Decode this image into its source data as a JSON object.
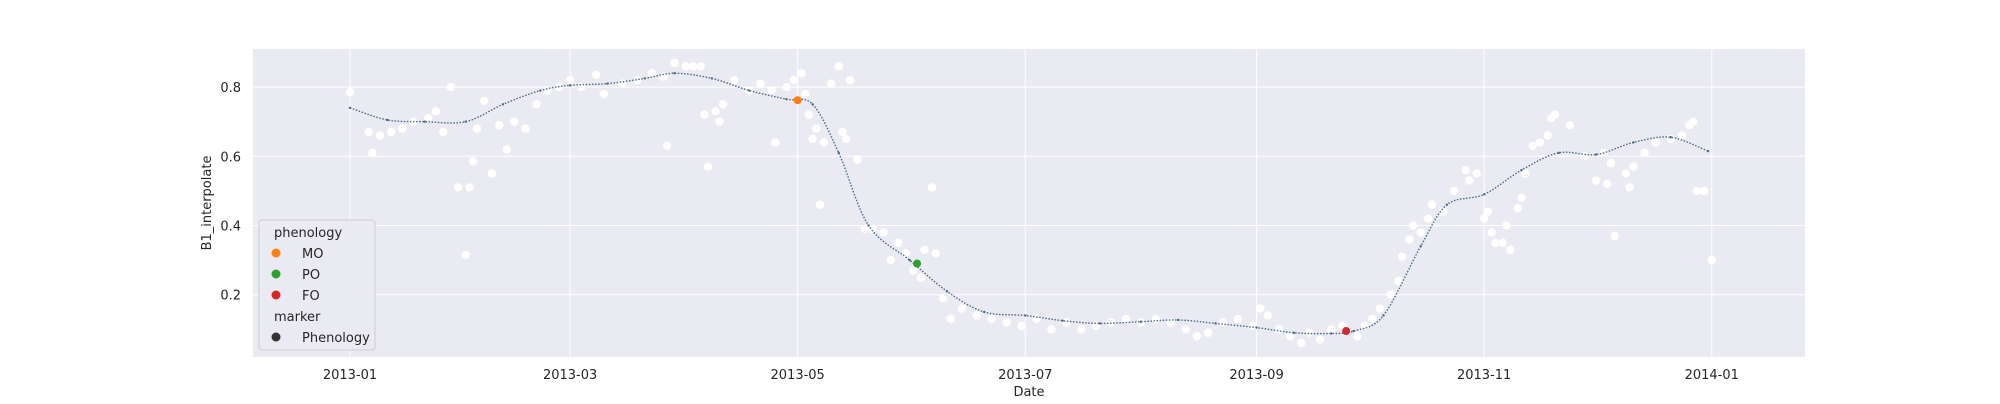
{
  "chart_data": {
    "type": "scatter",
    "xlabel": "Date",
    "ylabel": "B1_interpolate",
    "xlim": [
      "2012-12-06",
      "2014-01-26"
    ],
    "ylim": [
      0.02,
      0.91
    ],
    "x_ticks": [
      "2013-01-01",
      "2013-03-01",
      "2013-05-01",
      "2013-07-01",
      "2013-09-01",
      "2013-11-01",
      "2014-01-01"
    ],
    "x_tick_labels": [
      "2013-01",
      "2013-03",
      "2013-05",
      "2013-07",
      "2013-09",
      "2013-11",
      "2014-01"
    ],
    "y_ticks": [
      0.2,
      0.4,
      0.6,
      0.8
    ],
    "y_tick_labels": [
      "0.2",
      "0.4",
      "0.6",
      "0.8"
    ],
    "grid": true,
    "legend_position": "lower-left",
    "colors": {
      "background": "#eaeaf2",
      "grid": "#ffffff",
      "raw_points": "#ffffff",
      "smooth_line": "#4a6a85",
      "MO": "#ff7f0e",
      "PO": "#2ca02c",
      "FO": "#d62728",
      "marker": "#333333"
    },
    "legend": {
      "title1": "phenology",
      "entries": [
        {
          "label": "MO",
          "color": "#ff7f0e"
        },
        {
          "label": "PO",
          "color": "#2ca02c"
        },
        {
          "label": "FO",
          "color": "#d62728"
        }
      ],
      "title2": "marker",
      "marker_entry": {
        "label": "Phenology",
        "color": "#333333"
      }
    },
    "smoothed_series": {
      "x": [
        "2013-01-01",
        "2013-01-11",
        "2013-01-21",
        "2013-02-01",
        "2013-02-11",
        "2013-02-21",
        "2013-03-01",
        "2013-03-11",
        "2013-03-21",
        "2013-03-29",
        "2013-04-08",
        "2013-04-18",
        "2013-04-28",
        "2013-05-05",
        "2013-05-12",
        "2013-05-20",
        "2013-05-31",
        "2013-06-10",
        "2013-06-20",
        "2013-07-01",
        "2013-07-11",
        "2013-07-21",
        "2013-08-01",
        "2013-08-11",
        "2013-08-21",
        "2013-09-01",
        "2013-09-11",
        "2013-09-21",
        "2013-09-27",
        "2013-10-05",
        "2013-10-15",
        "2013-10-22",
        "2013-11-01",
        "2013-11-11",
        "2013-11-21",
        "2013-12-01",
        "2013-12-11",
        "2013-12-21",
        "2013-12-31"
      ],
      "y": [
        0.74,
        0.705,
        0.7,
        0.7,
        0.75,
        0.79,
        0.805,
        0.81,
        0.825,
        0.84,
        0.825,
        0.79,
        0.765,
        0.75,
        0.61,
        0.4,
        0.3,
        0.21,
        0.15,
        0.14,
        0.125,
        0.117,
        0.122,
        0.127,
        0.117,
        0.105,
        0.09,
        0.088,
        0.095,
        0.14,
        0.34,
        0.46,
        0.49,
        0.56,
        0.61,
        0.605,
        0.64,
        0.655,
        0.615
      ]
    },
    "phenology_points": [
      {
        "label": "MO",
        "x": "2013-05-01",
        "y": 0.762
      },
      {
        "label": "PO",
        "x": "2013-06-02",
        "y": 0.29
      },
      {
        "label": "FO",
        "x": "2013-09-25",
        "y": 0.095
      }
    ],
    "raw_points": [
      [
        "2013-01-01",
        0.785
      ],
      [
        "2013-01-06",
        0.67
      ],
      [
        "2013-01-07",
        0.61
      ],
      [
        "2013-01-09",
        0.66
      ],
      [
        "2013-01-12",
        0.67
      ],
      [
        "2013-01-15",
        0.68
      ],
      [
        "2013-01-18",
        0.7
      ],
      [
        "2013-01-22",
        0.71
      ],
      [
        "2013-01-24",
        0.73
      ],
      [
        "2013-01-26",
        0.67
      ],
      [
        "2013-01-28",
        0.8
      ],
      [
        "2013-01-30",
        0.51
      ],
      [
        "2013-02-01",
        0.315
      ],
      [
        "2013-02-02",
        0.51
      ],
      [
        "2013-02-03",
        0.585
      ],
      [
        "2013-02-04",
        0.68
      ],
      [
        "2013-02-06",
        0.76
      ],
      [
        "2013-02-08",
        0.55
      ],
      [
        "2013-02-10",
        0.69
      ],
      [
        "2013-02-12",
        0.62
      ],
      [
        "2013-02-14",
        0.7
      ],
      [
        "2013-02-17",
        0.68
      ],
      [
        "2013-02-20",
        0.75
      ],
      [
        "2013-02-23",
        0.79
      ],
      [
        "2013-02-26",
        0.8
      ],
      [
        "2013-03-01",
        0.82
      ],
      [
        "2013-03-04",
        0.8
      ],
      [
        "2013-03-08",
        0.835
      ],
      [
        "2013-03-10",
        0.78
      ],
      [
        "2013-03-15",
        0.81
      ],
      [
        "2013-03-19",
        0.82
      ],
      [
        "2013-03-23",
        0.84
      ],
      [
        "2013-03-26",
        0.83
      ],
      [
        "2013-03-27",
        0.63
      ],
      [
        "2013-03-29",
        0.87
      ],
      [
        "2013-04-01",
        0.86
      ],
      [
        "2013-04-03",
        0.86
      ],
      [
        "2013-04-05",
        0.86
      ],
      [
        "2013-04-06",
        0.72
      ],
      [
        "2013-04-07",
        0.57
      ],
      [
        "2013-04-09",
        0.73
      ],
      [
        "2013-04-10",
        0.7
      ],
      [
        "2013-04-11",
        0.75
      ],
      [
        "2013-04-14",
        0.82
      ],
      [
        "2013-04-18",
        0.79
      ],
      [
        "2013-04-21",
        0.81
      ],
      [
        "2013-04-24",
        0.79
      ],
      [
        "2013-04-25",
        0.64
      ],
      [
        "2013-04-28",
        0.8
      ],
      [
        "2013-04-30",
        0.82
      ],
      [
        "2013-05-02",
        0.84
      ],
      [
        "2013-05-03",
        0.78
      ],
      [
        "2013-05-04",
        0.72
      ],
      [
        "2013-05-05",
        0.65
      ],
      [
        "2013-05-06",
        0.68
      ],
      [
        "2013-05-07",
        0.46
      ],
      [
        "2013-05-08",
        0.64
      ],
      [
        "2013-05-10",
        0.81
      ],
      [
        "2013-05-12",
        0.86
      ],
      [
        "2013-05-13",
        0.67
      ],
      [
        "2013-05-14",
        0.65
      ],
      [
        "2013-05-15",
        0.82
      ],
      [
        "2013-05-17",
        0.59
      ],
      [
        "2013-05-19",
        0.39
      ],
      [
        "2013-05-21",
        0.39
      ],
      [
        "2013-05-24",
        0.38
      ],
      [
        "2013-05-26",
        0.3
      ],
      [
        "2013-05-28",
        0.35
      ],
      [
        "2013-05-30",
        0.32
      ],
      [
        "2013-06-01",
        0.27
      ],
      [
        "2013-06-03",
        0.25
      ],
      [
        "2013-06-04",
        0.33
      ],
      [
        "2013-06-06",
        0.51
      ],
      [
        "2013-06-07",
        0.32
      ],
      [
        "2013-06-09",
        0.19
      ],
      [
        "2013-06-11",
        0.13
      ],
      [
        "2013-06-14",
        0.16
      ],
      [
        "2013-06-18",
        0.14
      ],
      [
        "2013-06-22",
        0.13
      ],
      [
        "2013-06-26",
        0.12
      ],
      [
        "2013-06-30",
        0.11
      ],
      [
        "2013-07-04",
        0.13
      ],
      [
        "2013-07-08",
        0.1
      ],
      [
        "2013-07-12",
        0.12
      ],
      [
        "2013-07-16",
        0.1
      ],
      [
        "2013-07-20",
        0.11
      ],
      [
        "2013-07-24",
        0.12
      ],
      [
        "2013-07-28",
        0.13
      ],
      [
        "2013-08-01",
        0.12
      ],
      [
        "2013-08-05",
        0.13
      ],
      [
        "2013-08-09",
        0.12
      ],
      [
        "2013-08-13",
        0.1
      ],
      [
        "2013-08-16",
        0.08
      ],
      [
        "2013-08-19",
        0.09
      ],
      [
        "2013-08-23",
        0.12
      ],
      [
        "2013-08-27",
        0.13
      ],
      [
        "2013-08-31",
        0.11
      ],
      [
        "2013-09-02",
        0.16
      ],
      [
        "2013-09-04",
        0.14
      ],
      [
        "2013-09-07",
        0.1
      ],
      [
        "2013-09-10",
        0.08
      ],
      [
        "2013-09-13",
        0.06
      ],
      [
        "2013-09-15",
        0.09
      ],
      [
        "2013-09-18",
        0.07
      ],
      [
        "2013-09-21",
        0.1
      ],
      [
        "2013-09-24",
        0.11
      ],
      [
        "2013-09-28",
        0.08
      ],
      [
        "2013-09-30",
        0.11
      ],
      [
        "2013-10-02",
        0.13
      ],
      [
        "2013-10-04",
        0.16
      ],
      [
        "2013-10-07",
        0.2
      ],
      [
        "2013-10-09",
        0.24
      ],
      [
        "2013-10-10",
        0.31
      ],
      [
        "2013-10-12",
        0.36
      ],
      [
        "2013-10-13",
        0.4
      ],
      [
        "2013-10-15",
        0.38
      ],
      [
        "2013-10-17",
        0.42
      ],
      [
        "2013-10-18",
        0.46
      ],
      [
        "2013-10-21",
        0.44
      ],
      [
        "2013-10-24",
        0.5
      ],
      [
        "2013-10-27",
        0.56
      ],
      [
        "2013-10-28",
        0.53
      ],
      [
        "2013-10-30",
        0.55
      ],
      [
        "2013-11-01",
        0.42
      ],
      [
        "2013-11-02",
        0.44
      ],
      [
        "2013-11-03",
        0.38
      ],
      [
        "2013-11-04",
        0.35
      ],
      [
        "2013-11-06",
        0.35
      ],
      [
        "2013-11-07",
        0.4
      ],
      [
        "2013-11-08",
        0.33
      ],
      [
        "2013-11-10",
        0.45
      ],
      [
        "2013-11-11",
        0.48
      ],
      [
        "2013-11-12",
        0.55
      ],
      [
        "2013-11-14",
        0.63
      ],
      [
        "2013-11-16",
        0.64
      ],
      [
        "2013-11-18",
        0.66
      ],
      [
        "2013-11-19",
        0.71
      ],
      [
        "2013-11-20",
        0.72
      ],
      [
        "2013-11-24",
        0.69
      ],
      [
        "2013-11-28",
        0.6
      ],
      [
        "2013-12-01",
        0.53
      ],
      [
        "2013-12-03",
        0.61
      ],
      [
        "2013-12-04",
        0.52
      ],
      [
        "2013-12-05",
        0.58
      ],
      [
        "2013-12-06",
        0.37
      ],
      [
        "2013-12-09",
        0.55
      ],
      [
        "2013-12-10",
        0.51
      ],
      [
        "2013-12-11",
        0.57
      ],
      [
        "2013-12-14",
        0.61
      ],
      [
        "2013-12-17",
        0.64
      ],
      [
        "2013-12-21",
        0.65
      ],
      [
        "2013-12-24",
        0.66
      ],
      [
        "2013-12-26",
        0.69
      ],
      [
        "2013-12-27",
        0.7
      ],
      [
        "2013-12-28",
        0.5
      ],
      [
        "2013-12-30",
        0.5
      ],
      [
        "2014-01-01",
        0.3
      ]
    ]
  }
}
